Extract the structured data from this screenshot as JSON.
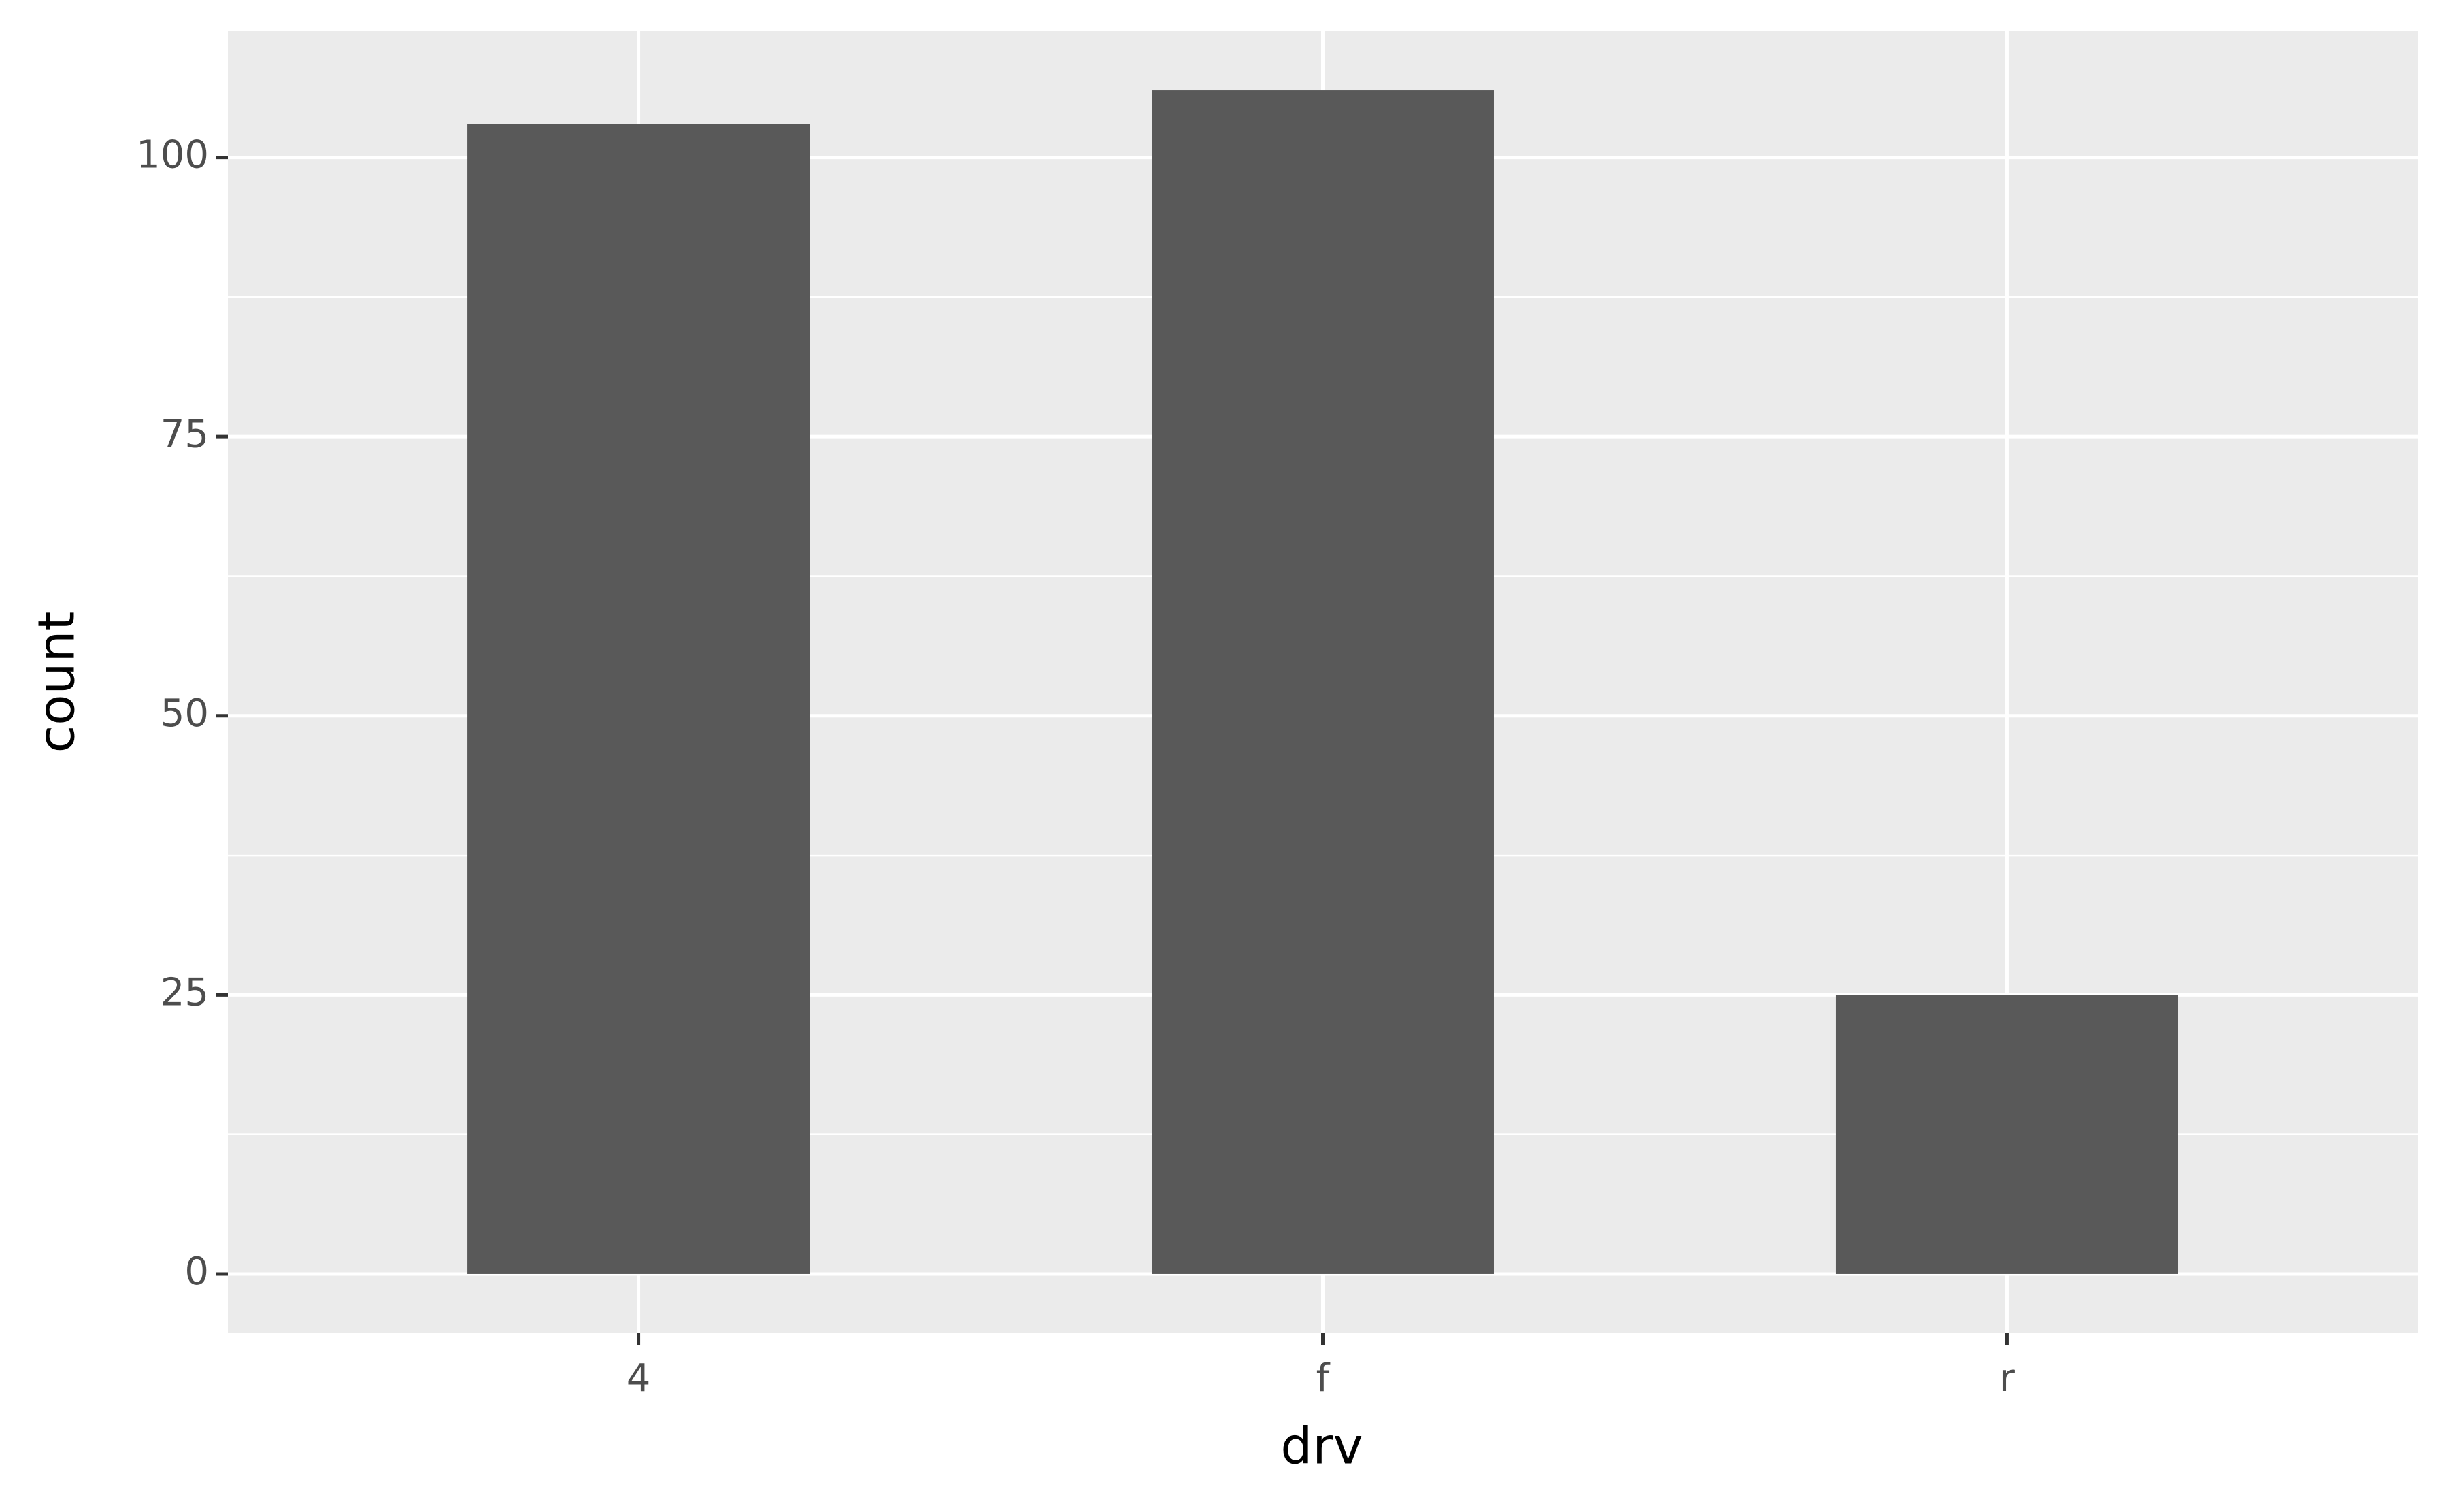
{
  "chart_data": {
    "type": "bar",
    "x_label": "drv",
    "y_label": "count",
    "categories": [
      "4",
      "f",
      "r"
    ],
    "values": [
      103,
      106,
      25
    ],
    "color": "#595959",
    "ylim": [
      -5.3,
      111.3
    ],
    "yticks": [
      0,
      25,
      50,
      75,
      100
    ],
    "grid": true
  }
}
